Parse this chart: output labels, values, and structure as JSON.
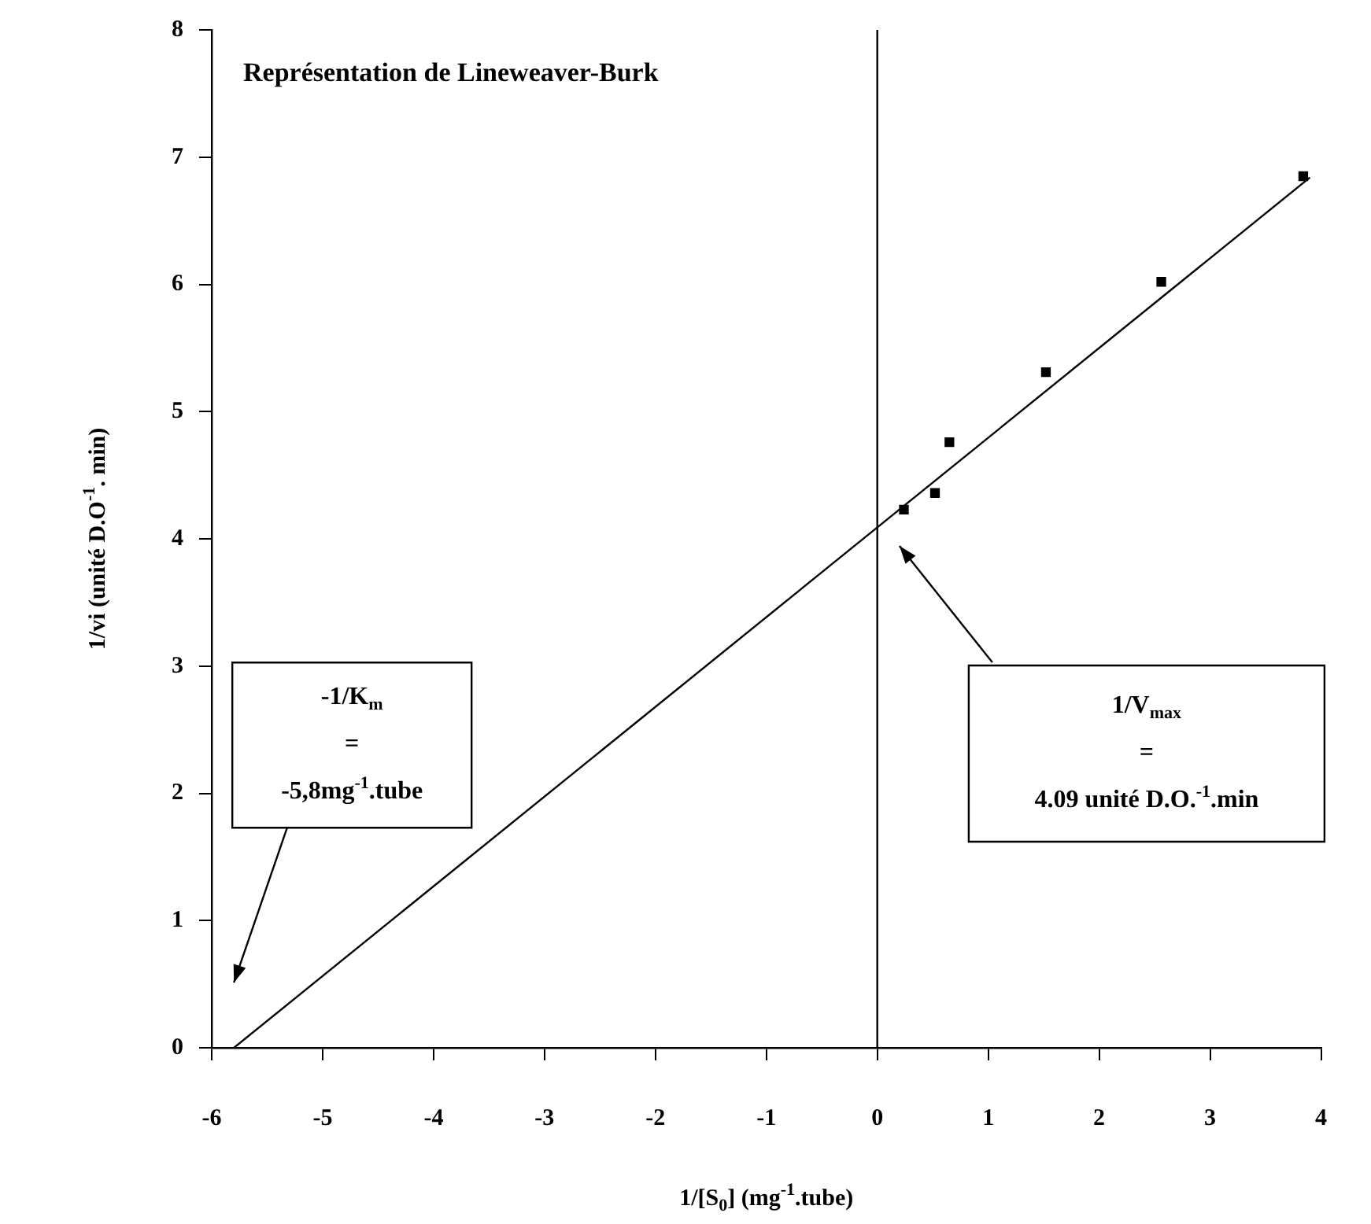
{
  "chart_data": {
    "type": "scatter",
    "title": "Représentation de Lineweaver-Burk",
    "xlabel": "1/[S$_{0}$] (mg$^{-1}$.tube)",
    "ylabel": "1/vi (unité D.O$^{-1}$. min)",
    "xlim": [
      -6,
      4
    ],
    "xticks": [
      -6,
      -5,
      -4,
      -3,
      -2,
      -1,
      0,
      1,
      2,
      3,
      4
    ],
    "ylim": [
      0,
      8
    ],
    "yticks": [
      0,
      1,
      2,
      3,
      4,
      5,
      6,
      7,
      8
    ],
    "grid": false,
    "legend": false,
    "series": [
      {
        "marker": "square",
        "color": "#000000",
        "x": [
          0.24,
          0.52,
          0.65,
          1.52,
          2.56,
          3.84
        ],
        "values": [
          4.23,
          4.36,
          4.76,
          5.31,
          6.02,
          6.85
        ]
      },
      {
        "type": "line",
        "marker": "none",
        "color": "#000000",
        "x": [
          -5.8,
          3.9
        ],
        "values": [
          0,
          6.84
        ]
      }
    ],
    "ref_lines": [
      {
        "axis": "x",
        "value": 0,
        "color": "#000000"
      }
    ],
    "annotations": [
      "-1/K$_{m}$\n=\n-5,8mg$^{-1}$.tube",
      "1/V$_{max}$\n=\n4.09 unité D.O.$^{-1}$.min"
    ]
  }
}
